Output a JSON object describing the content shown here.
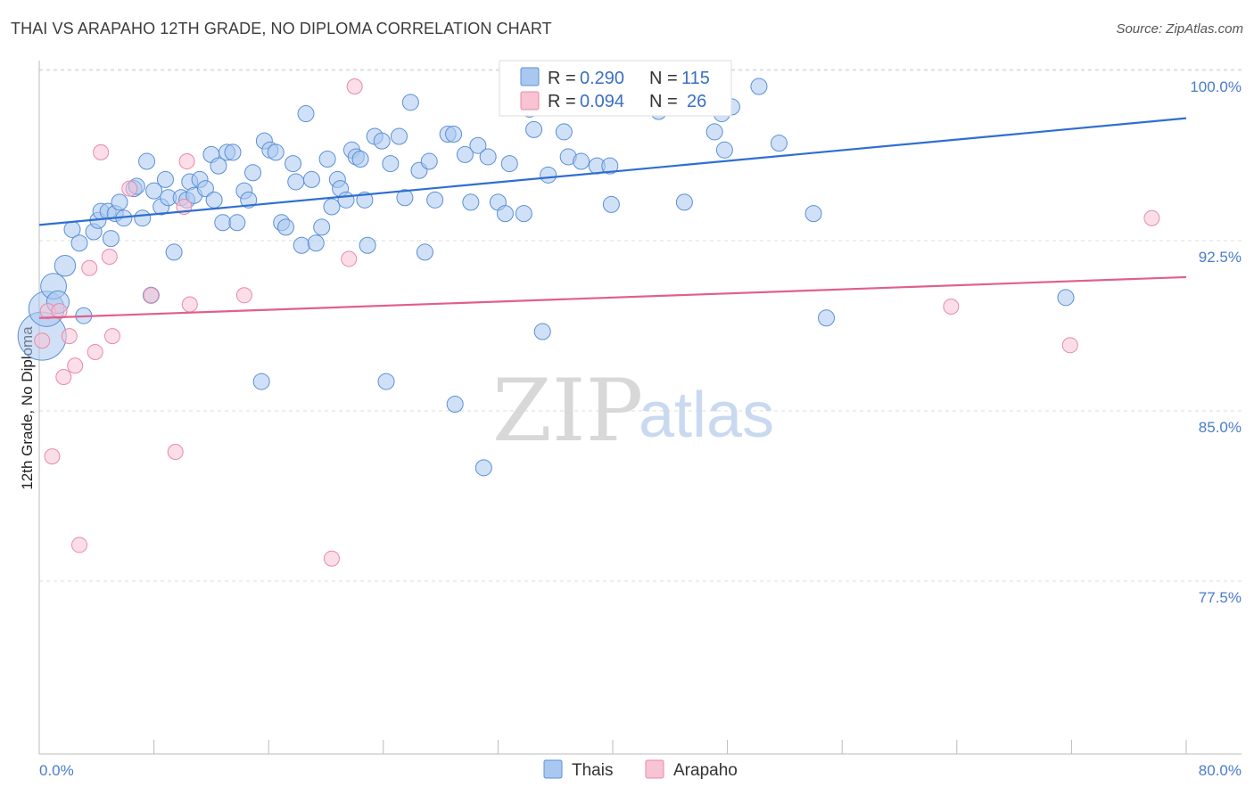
{
  "title": "THAI VS ARAPAHO 12TH GRADE, NO DIPLOMA CORRELATION CHART",
  "source": "Source: ZipAtlas.com",
  "watermark": {
    "part1": "ZIP",
    "part2": "atlas"
  },
  "legend": {
    "rows": [
      {
        "r_label": "R =",
        "r_value": "0.290",
        "n_label": "N =",
        "n_value": "115"
      },
      {
        "r_label": "R =",
        "r_value": "0.094",
        "n_label": "N =",
        "n_value": "26"
      }
    ]
  },
  "bottom_legend": {
    "thais": "Thais",
    "arapaho": "Arapaho"
  },
  "colors": {
    "thais_fill": "#a9c8f0",
    "thais_stroke": "#5b8fd6",
    "thais_line": "#2f6fd0",
    "arapaho_fill": "#f8c3d3",
    "arapaho_stroke": "#e98aa8",
    "arapaho_line": "#e0608a",
    "tick_label": "#4a7cc9",
    "grid": "#dddddd"
  },
  "chart_data": {
    "type": "scatter",
    "title": "THAI VS ARAPAHO 12TH GRADE, NO DIPLOMA CORRELATION CHART",
    "xlabel": "",
    "ylabel": "12th Grade, No Diploma",
    "xlim": [
      0,
      80
    ],
    "ylim": [
      70,
      101.5
    ],
    "x_tick_labels": [
      "0.0%",
      "80.0%"
    ],
    "y_ticks": [
      77.5,
      85.0,
      92.5,
      100.0
    ],
    "y_tick_labels": [
      "77.5%",
      "85.0%",
      "92.5%",
      "100.0%"
    ],
    "grid": true,
    "legend_position": "top-center",
    "series": [
      {
        "name": "Thais",
        "r": 0.29,
        "n": 115,
        "trend": [
          [
            0,
            93.9
          ],
          [
            80,
            98.6
          ]
        ],
        "points": [
          [
            0.2,
            89.0,
            3
          ],
          [
            0.5,
            90.2,
            2.2
          ],
          [
            1.0,
            91.2,
            1.6
          ],
          [
            1.3,
            90.5,
            1.4
          ],
          [
            1.8,
            92.1,
            1.3
          ],
          [
            2.3,
            93.7,
            1
          ],
          [
            2.8,
            93.1,
            1
          ],
          [
            3.1,
            89.9,
            1
          ],
          [
            3.8,
            93.6,
            1
          ],
          [
            4.1,
            94.1,
            1
          ],
          [
            4.3,
            94.5,
            1
          ],
          [
            4.8,
            94.5,
            1
          ],
          [
            5.0,
            93.3,
            1
          ],
          [
            5.3,
            94.4,
            1
          ],
          [
            5.6,
            94.9,
            1
          ],
          [
            5.9,
            94.2,
            1
          ],
          [
            6.6,
            95.5,
            1
          ],
          [
            6.8,
            95.6,
            1
          ],
          [
            7.2,
            94.2,
            1
          ],
          [
            7.5,
            96.7,
            1
          ],
          [
            7.8,
            90.8,
            1
          ],
          [
            8.0,
            95.4,
            1
          ],
          [
            8.5,
            94.7,
            1
          ],
          [
            8.8,
            95.9,
            1
          ],
          [
            9.0,
            95.1,
            1
          ],
          [
            9.4,
            92.7,
            1
          ],
          [
            9.9,
            95.1,
            1
          ],
          [
            10.3,
            95.0,
            1
          ],
          [
            10.5,
            95.8,
            1
          ],
          [
            10.8,
            95.2,
            1
          ],
          [
            11.2,
            95.9,
            1
          ],
          [
            11.6,
            95.5,
            1
          ],
          [
            12.0,
            97.0,
            1
          ],
          [
            12.2,
            95.0,
            1
          ],
          [
            12.5,
            96.5,
            1
          ],
          [
            12.8,
            94.0,
            1
          ],
          [
            13.1,
            97.1,
            1
          ],
          [
            13.5,
            97.1,
            1
          ],
          [
            13.8,
            94.0,
            1
          ],
          [
            14.3,
            95.4,
            1
          ],
          [
            14.6,
            95.0,
            1
          ],
          [
            14.9,
            96.2,
            1
          ],
          [
            15.5,
            87.0,
            1
          ],
          [
            15.7,
            97.6,
            1
          ],
          [
            16.1,
            97.2,
            1
          ],
          [
            16.5,
            97.1,
            1
          ],
          [
            16.9,
            94.0,
            1
          ],
          [
            17.2,
            93.8,
            1
          ],
          [
            17.7,
            96.6,
            1
          ],
          [
            17.9,
            95.8,
            1
          ],
          [
            18.3,
            93.0,
            1
          ],
          [
            18.6,
            98.8,
            1
          ],
          [
            19.0,
            95.9,
            1
          ],
          [
            19.3,
            93.1,
            1
          ],
          [
            19.7,
            93.8,
            1
          ],
          [
            20.1,
            96.8,
            1
          ],
          [
            20.4,
            94.7,
            1
          ],
          [
            20.8,
            95.9,
            1
          ],
          [
            21.0,
            95.5,
            1
          ],
          [
            21.4,
            95.0,
            1
          ],
          [
            21.8,
            97.2,
            1
          ],
          [
            22.1,
            96.9,
            1
          ],
          [
            22.4,
            96.8,
            1
          ],
          [
            22.7,
            95.0,
            1
          ],
          [
            22.9,
            93.0,
            1
          ],
          [
            23.4,
            97.8,
            1
          ],
          [
            23.9,
            97.6,
            1
          ],
          [
            24.2,
            87.0,
            1
          ],
          [
            24.5,
            96.6,
            1
          ],
          [
            25.1,
            97.8,
            1
          ],
          [
            25.5,
            95.1,
            1
          ],
          [
            25.9,
            99.3,
            1
          ],
          [
            26.5,
            96.3,
            1
          ],
          [
            26.9,
            92.7,
            1
          ],
          [
            27.2,
            96.7,
            1
          ],
          [
            27.6,
            95.0,
            1
          ],
          [
            28.5,
            97.9,
            1
          ],
          [
            28.9,
            97.9,
            1
          ],
          [
            29.0,
            86.0,
            1
          ],
          [
            29.7,
            97.0,
            1
          ],
          [
            30.1,
            94.9,
            1
          ],
          [
            30.6,
            97.4,
            1
          ],
          [
            31.0,
            83.2,
            1
          ],
          [
            31.3,
            96.9,
            1
          ],
          [
            32.0,
            94.9,
            1
          ],
          [
            32.5,
            94.4,
            1
          ],
          [
            32.8,
            96.6,
            1
          ],
          [
            33.0,
            100.0,
            1
          ],
          [
            33.8,
            94.4,
            1
          ],
          [
            34.2,
            99.0,
            1
          ],
          [
            34.5,
            98.1,
            1
          ],
          [
            35.1,
            89.2,
            1
          ],
          [
            35.5,
            96.1,
            1
          ],
          [
            36.6,
            98.0,
            1
          ],
          [
            36.9,
            96.9,
            1
          ],
          [
            37.8,
            96.7,
            1
          ],
          [
            38.5,
            100.0,
            1
          ],
          [
            38.9,
            96.5,
            1
          ],
          [
            39.8,
            96.5,
            1
          ],
          [
            39.9,
            94.8,
            1
          ],
          [
            40.5,
            99.9,
            1
          ],
          [
            42.3,
            100.0,
            1
          ],
          [
            43.2,
            98.9,
            1
          ],
          [
            45.0,
            94.9,
            1
          ],
          [
            47.1,
            98.0,
            1
          ],
          [
            47.6,
            98.8,
            1
          ],
          [
            47.8,
            97.2,
            1
          ],
          [
            48.3,
            99.1,
            1
          ],
          [
            50.2,
            100.0,
            1
          ],
          [
            51.6,
            97.5,
            1
          ],
          [
            54.0,
            94.4,
            1
          ],
          [
            54.9,
            89.8,
            1
          ],
          [
            71.6,
            90.7,
            1
          ]
        ]
      },
      {
        "name": "Arapaho",
        "r": 0.094,
        "n": 26,
        "trend": [
          [
            0,
            89.8
          ],
          [
            80,
            91.6
          ]
        ],
        "points": [
          [
            0.2,
            88.8
          ],
          [
            0.6,
            90.1
          ],
          [
            0.9,
            83.7
          ],
          [
            1.4,
            90.1
          ],
          [
            1.7,
            87.2
          ],
          [
            2.1,
            89.0
          ],
          [
            2.5,
            87.7
          ],
          [
            2.8,
            79.8
          ],
          [
            3.5,
            92.0
          ],
          [
            3.9,
            88.3
          ],
          [
            4.3,
            97.1
          ],
          [
            4.9,
            92.5
          ],
          [
            5.1,
            89.0
          ],
          [
            6.3,
            95.5
          ],
          [
            7.8,
            90.8
          ],
          [
            9.5,
            83.9
          ],
          [
            10.1,
            94.7
          ],
          [
            10.3,
            96.7
          ],
          [
            10.5,
            90.4
          ],
          [
            14.3,
            90.8
          ],
          [
            20.4,
            79.2
          ],
          [
            21.6,
            92.4
          ],
          [
            22.0,
            100.0
          ],
          [
            63.6,
            90.3
          ],
          [
            71.9,
            88.6
          ],
          [
            77.6,
            94.2
          ]
        ]
      }
    ]
  }
}
